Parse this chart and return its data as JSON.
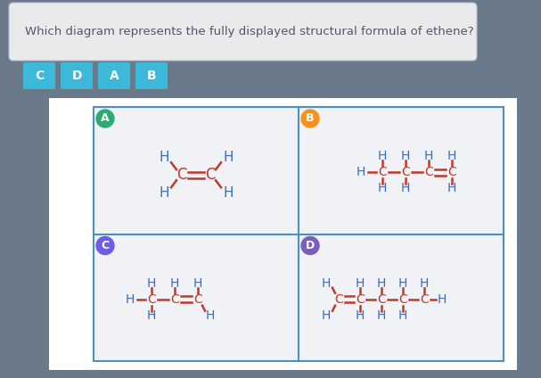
{
  "title": "Which diagram represents the fully displayed structural formula of ethene?",
  "answer_buttons": [
    "C",
    "D",
    "A",
    "B"
  ],
  "bg_color": "#6a7a8a",
  "panel_bg": "#f0f2f5",
  "grid_bg": "#f0f2f5",
  "border_color": "#4a90c4",
  "label_colors": {
    "A": "#2dab72",
    "B": "#f5921e",
    "C": "#6c5ce7",
    "D": "#7c5cbf"
  },
  "bond_color": "#c0392b",
  "atom_color": "#3a6bbf",
  "text_color_dark": "#555566",
  "question_bg": "#e8eaec",
  "button_color": "#3cb8d8"
}
